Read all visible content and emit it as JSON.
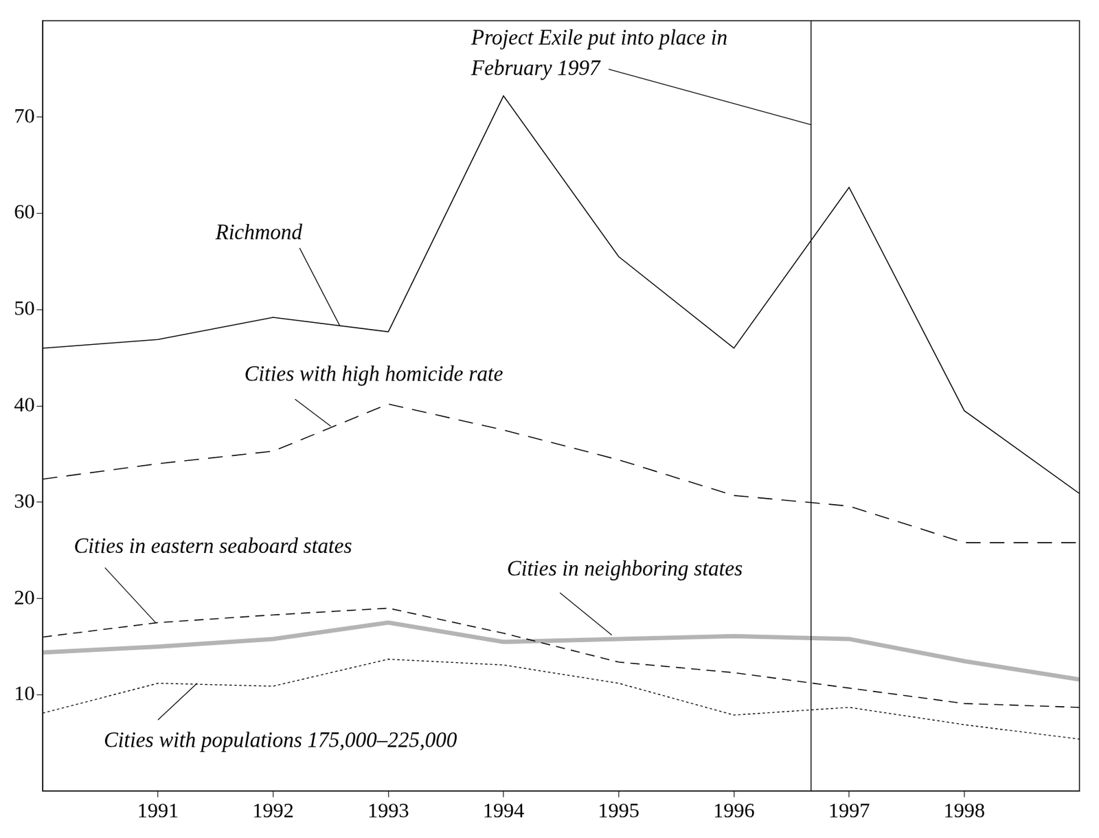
{
  "chart_data": {
    "type": "line",
    "x": [
      1990,
      1991,
      1992,
      1993,
      1994,
      1995,
      1996,
      1997,
      1998,
      1999
    ],
    "xlim": [
      1990,
      1999
    ],
    "xticks": [
      1991,
      1992,
      1993,
      1994,
      1995,
      1996,
      1997,
      1998
    ],
    "ylim": [
      0,
      80
    ],
    "yticks": [
      10,
      20,
      30,
      40,
      50,
      60,
      70
    ],
    "grid": false,
    "series": [
      {
        "name": "Richmond",
        "color": "#000000",
        "line_style": "solid",
        "values": [
          46.0,
          46.9,
          49.2,
          47.7,
          72.2,
          55.5,
          46.0,
          62.7,
          39.5,
          30.9
        ]
      },
      {
        "name": "Cities with high homicide rate",
        "color": "#000000",
        "line_style": "longdash",
        "values": [
          32.4,
          34.0,
          35.3,
          40.2,
          37.5,
          34.4,
          30.7,
          29.6,
          25.8,
          25.8
        ]
      },
      {
        "name": "Cities in eastern seaboard states",
        "color": "#000000",
        "line_style": "dashed",
        "values": [
          16.0,
          17.5,
          18.3,
          19.0,
          16.4,
          13.4,
          12.3,
          10.7,
          9.1,
          8.7
        ]
      },
      {
        "name": "Cities in neighboring states",
        "color": "#b4b4b4",
        "line_style": "heavy",
        "values": [
          14.4,
          15.0,
          15.8,
          17.5,
          15.5,
          15.8,
          16.1,
          15.8,
          13.5,
          11.6
        ]
      },
      {
        "name": "Cities with populations 175,000–225,000",
        "color": "#000000",
        "line_style": "dotted",
        "values": [
          8.1,
          11.2,
          10.9,
          13.7,
          13.1,
          11.2,
          7.9,
          8.7,
          6.9,
          5.4
        ]
      }
    ],
    "vline": {
      "x": 1996.67,
      "label": [
        "Project Exile put into place in",
        "February 1997"
      ]
    }
  }
}
